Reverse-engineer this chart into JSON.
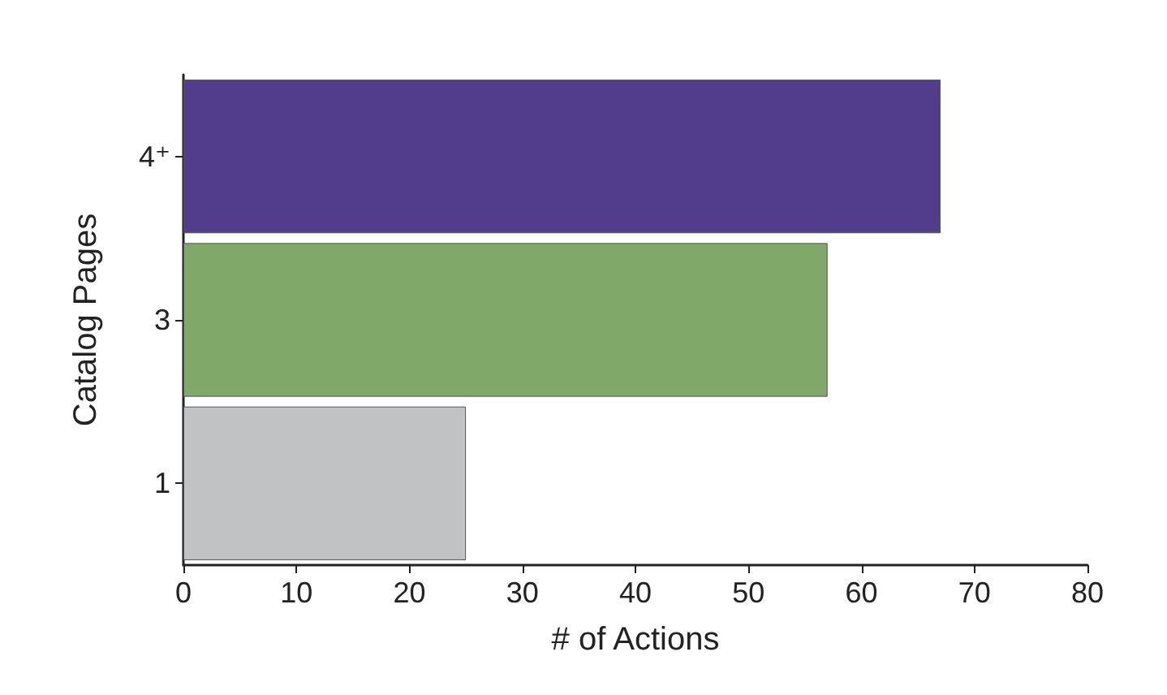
{
  "chart_data": {
    "type": "bar",
    "orientation": "horizontal",
    "xlabel": "# of Actions",
    "ylabel": "Catalog Pages",
    "categories": [
      "4⁺",
      "3",
      "1"
    ],
    "values": [
      67,
      57,
      25
    ],
    "colors": [
      "#523d8c",
      "#80a868",
      "#c1c2c4"
    ],
    "xlim": [
      0,
      80
    ],
    "xticks": [
      0,
      10,
      20,
      30,
      40,
      50,
      60,
      70,
      80
    ],
    "grid": false
  }
}
